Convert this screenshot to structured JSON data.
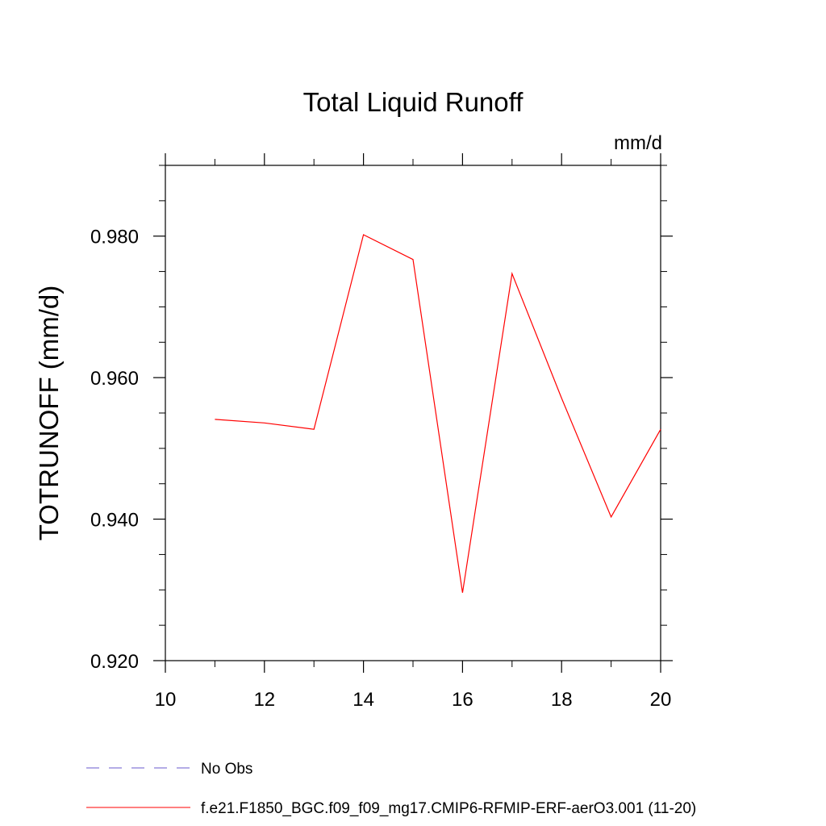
{
  "chart_data": {
    "type": "line",
    "title": "Total Liquid Runoff",
    "units_label": "mm/d",
    "ylabel": "TOTRUNOFF  (mm/d)",
    "xlabel": "",
    "xlim": [
      10,
      20
    ],
    "ylim": [
      0.92,
      0.99
    ],
    "x_major_ticks": [
      10,
      12,
      14,
      16,
      18,
      20
    ],
    "x_minor_ticks": [
      11,
      13,
      15,
      17,
      19
    ],
    "x_tick_labels": [
      "10",
      "12",
      "14",
      "16",
      "18",
      "20"
    ],
    "y_major_ticks": [
      0.92,
      0.94,
      0.96,
      0.98
    ],
    "y_minor_ticks": [
      0.925,
      0.93,
      0.935,
      0.945,
      0.95,
      0.955,
      0.965,
      0.97,
      0.975,
      0.985,
      0.99
    ],
    "y_tick_labels": [
      "0.920",
      "0.940",
      "0.960",
      "0.980"
    ],
    "grid": false,
    "series": [
      {
        "name": "f.e21.F1850_BGC.f09_f09_mg17.CMIP6-RFMIP-ERF-aerO3.001 (11-20)",
        "color": "#ff0000",
        "dash": "solid",
        "x": [
          11,
          12,
          13,
          14,
          15,
          16,
          17,
          18,
          19,
          20
        ],
        "y": [
          0.9541,
          0.9536,
          0.9527,
          0.9802,
          0.9767,
          0.9296,
          0.9747,
          0.9571,
          0.9403,
          0.9527
        ]
      }
    ],
    "legend": {
      "placement": "bottom-left",
      "entries": [
        {
          "label": "No Obs",
          "color": "#6a5acd",
          "dash": "dashed"
        },
        {
          "label": "f.e21.F1850_BGC.f09_f09_mg17.CMIP6-RFMIP-ERF-aerO3.001 (11-20)",
          "color": "#ff0000",
          "dash": "solid"
        }
      ]
    }
  }
}
